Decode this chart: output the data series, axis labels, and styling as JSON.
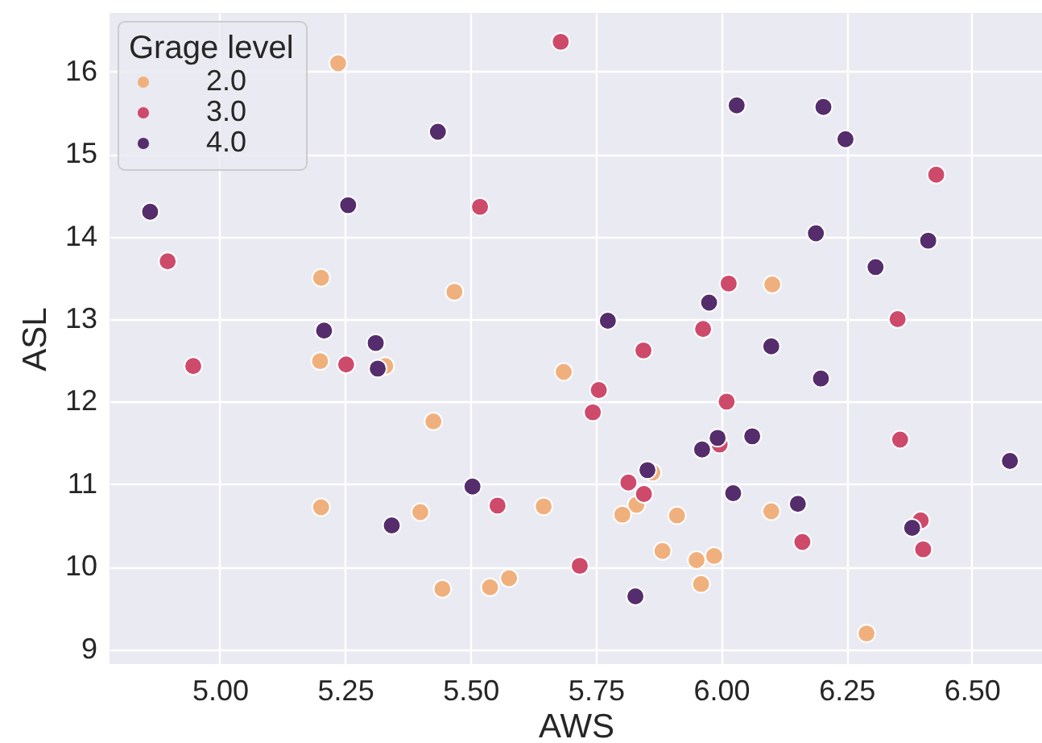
{
  "chart_data": {
    "type": "scatter",
    "xlabel": "AWS",
    "ylabel": "ASL",
    "legend_title": "Grage level",
    "legend": "top left",
    "grid": true,
    "marker": "circle",
    "xlim": [
      4.78,
      6.64
    ],
    "ylim": [
      8.82,
      16.71
    ],
    "xticks": [
      {
        "value": 5,
        "label": "5.00"
      },
      {
        "value": 5.25,
        "label": "5.25"
      },
      {
        "value": 5.5,
        "label": "5.50"
      },
      {
        "value": 5.75,
        "label": "5.75"
      },
      {
        "value": 6,
        "label": "6.00"
      },
      {
        "value": 6.25,
        "label": "6.25"
      },
      {
        "value": 6.5,
        "label": "6.50"
      }
    ],
    "yticks": [
      9,
      10,
      11,
      12,
      13,
      14,
      15,
      16
    ],
    "series": [
      {
        "name": "2.0",
        "color": "#f0b07e",
        "x": [
          5.236,
          5.202,
          5.468,
          5.2,
          5.33,
          5.426,
          5.202,
          5.4,
          5.444,
          5.539,
          5.577,
          6.102,
          5.686,
          5.863,
          5.646,
          5.831,
          5.803,
          5.912,
          6.1,
          5.883,
          5.951,
          5.986,
          5.96,
          6.29
        ],
        "values": [
          16.1,
          13.5,
          13.33,
          12.49,
          12.43,
          11.76,
          10.72,
          10.66,
          9.73,
          9.75,
          9.86,
          13.42,
          12.36,
          11.14,
          10.73,
          10.75,
          10.63,
          10.62,
          10.67,
          10.19,
          10.08,
          10.13,
          9.79,
          9.19
        ]
      },
      {
        "name": "3.0",
        "color": "#ce4a6b",
        "x": [
          5.519,
          4.896,
          5.68,
          6.429,
          6.015,
          6.352,
          5.964,
          5.845,
          4.947,
          5.252,
          5.554,
          5.756,
          5.744,
          6.011,
          5.997,
          6.357,
          5.815,
          5.846,
          6.398,
          6.162,
          6.403,
          5.718
        ],
        "values": [
          14.36,
          13.7,
          16.36,
          14.75,
          13.43,
          13.0,
          12.88,
          12.62,
          12.43,
          12.45,
          10.74,
          12.14,
          11.87,
          12.0,
          11.48,
          11.54,
          11.02,
          10.88,
          10.56,
          10.3,
          10.21,
          10.01
        ]
      },
      {
        "name": "4.0",
        "color": "#552d6c",
        "x": [
          5.435,
          5.256,
          4.861,
          5.208,
          5.311,
          6.031,
          6.204,
          6.248,
          6.189,
          6.413,
          6.308,
          5.976,
          5.774,
          6.1,
          5.315,
          5.504,
          5.343,
          6.199,
          5.993,
          6.062,
          5.962,
          6.576,
          5.853,
          6.024,
          6.153,
          6.381,
          5.829
        ],
        "values": [
          15.27,
          14.38,
          14.3,
          12.86,
          12.71,
          15.59,
          15.57,
          15.18,
          14.04,
          13.95,
          13.63,
          13.2,
          12.98,
          12.67,
          12.4,
          10.97,
          10.5,
          12.28,
          11.56,
          11.58,
          11.42,
          11.28,
          11.17,
          10.89,
          10.76,
          10.47,
          9.64
        ]
      }
    ]
  }
}
